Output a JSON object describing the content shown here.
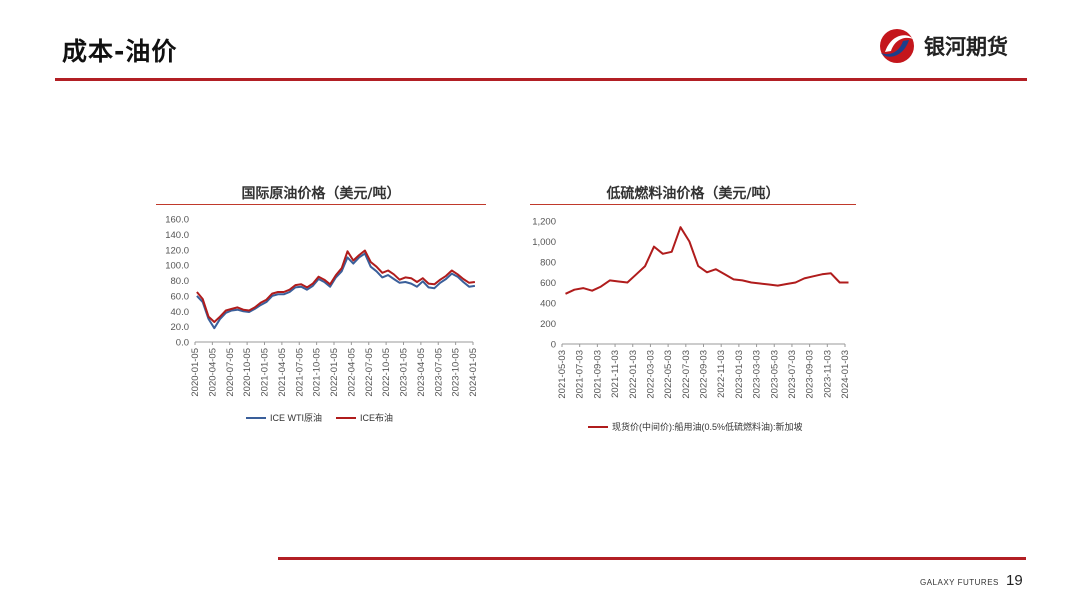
{
  "slide": {
    "title": "成本-油价"
  },
  "logo": {
    "text": "银河期货"
  },
  "footer": {
    "brand": "GALAXY FUTURES",
    "page_number": "19"
  },
  "colors": {
    "accent": "#b21f24",
    "wti": "#3a5f9a",
    "brent": "#b01c1c"
  },
  "chart_data": [
    {
      "type": "line",
      "title": "国际原油价格（美元/吨）",
      "ylim": [
        0,
        160
      ],
      "yticks": [
        "160.0",
        "140.0",
        "120.0",
        "100.0",
        "80.0",
        "60.0",
        "40.0",
        "20.0",
        "0.0"
      ],
      "xticks": [
        "2020-01-05",
        "2020-04-05",
        "2020-07-05",
        "2020-10-05",
        "2021-01-05",
        "2021-04-05",
        "2021-07-05",
        "2021-10-05",
        "2022-01-05",
        "2022-04-05",
        "2022-07-05",
        "2022-10-05",
        "2023-01-05",
        "2023-04-05",
        "2023-07-05",
        "2023-10-05",
        "2024-01-05"
      ],
      "legend_position": "bottom",
      "series": [
        {
          "name": "ICE WTI原油",
          "x": [
            "2020-01",
            "2020-02",
            "2020-03",
            "2020-04",
            "2020-05",
            "2020-06",
            "2020-07",
            "2020-08",
            "2020-09",
            "2020-10",
            "2020-11",
            "2020-12",
            "2021-01",
            "2021-02",
            "2021-03",
            "2021-04",
            "2021-05",
            "2021-06",
            "2021-07",
            "2021-08",
            "2021-09",
            "2021-10",
            "2021-11",
            "2021-12",
            "2022-01",
            "2022-02",
            "2022-03",
            "2022-04",
            "2022-05",
            "2022-06",
            "2022-07",
            "2022-08",
            "2022-09",
            "2022-10",
            "2022-11",
            "2022-12",
            "2023-01",
            "2023-02",
            "2023-03",
            "2023-04",
            "2023-05",
            "2023-06",
            "2023-07",
            "2023-08",
            "2023-09",
            "2023-10",
            "2023-11",
            "2023-12",
            "2024-01"
          ],
          "values": [
            60,
            52,
            30,
            18,
            30,
            38,
            41,
            42,
            40,
            39,
            43,
            48,
            52,
            60,
            62,
            62,
            65,
            71,
            72,
            68,
            73,
            82,
            78,
            72,
            84,
            92,
            110,
            102,
            110,
            115,
            98,
            92,
            84,
            87,
            82,
            77,
            78,
            76,
            72,
            79,
            71,
            70,
            77,
            82,
            89,
            85,
            78,
            72,
            73
          ]
        },
        {
          "name": "ICE布油",
          "x": [
            "2020-01",
            "2020-02",
            "2020-03",
            "2020-04",
            "2020-05",
            "2020-06",
            "2020-07",
            "2020-08",
            "2020-09",
            "2020-10",
            "2020-11",
            "2020-12",
            "2021-01",
            "2021-02",
            "2021-03",
            "2021-04",
            "2021-05",
            "2021-06",
            "2021-07",
            "2021-08",
            "2021-09",
            "2021-10",
            "2021-11",
            "2021-12",
            "2022-01",
            "2022-02",
            "2022-03",
            "2022-04",
            "2022-05",
            "2022-06",
            "2022-07",
            "2022-08",
            "2022-09",
            "2022-10",
            "2022-11",
            "2022-12",
            "2023-01",
            "2023-02",
            "2023-03",
            "2023-04",
            "2023-05",
            "2023-06",
            "2023-07",
            "2023-08",
            "2023-09",
            "2023-10",
            "2023-11",
            "2023-12",
            "2024-01"
          ],
          "values": [
            65,
            56,
            33,
            26,
            33,
            41,
            43,
            45,
            42,
            41,
            45,
            51,
            55,
            63,
            65,
            65,
            68,
            74,
            75,
            71,
            76,
            85,
            81,
            75,
            87,
            96,
            118,
            106,
            113,
            119,
            104,
            98,
            90,
            93,
            88,
            81,
            84,
            83,
            78,
            83,
            76,
            75,
            81,
            86,
            93,
            88,
            82,
            77,
            78
          ]
        }
      ]
    },
    {
      "type": "line",
      "title": "低硫燃料油价格（美元/吨）",
      "ylim": [
        0,
        1200
      ],
      "yticks": [
        "1,200",
        "1,000",
        "800",
        "600",
        "400",
        "200",
        "0"
      ],
      "xticks": [
        "2021-05-03",
        "2021-07-03",
        "2021-09-03",
        "2021-11-03",
        "2022-01-03",
        "2022-03-03",
        "2022-05-03",
        "2022-07-03",
        "2022-09-03",
        "2022-11-03",
        "2023-01-03",
        "2023-03-03",
        "2023-05-03",
        "2023-07-03",
        "2023-09-03",
        "2023-11-03",
        "2024-01-03"
      ],
      "legend_position": "bottom",
      "series": [
        {
          "name": "现货价(中间价):船用油(0.5%低硫燃料油):新加坡",
          "x": [
            "2021-05",
            "2021-06",
            "2021-07",
            "2021-08",
            "2021-09",
            "2021-10",
            "2021-11",
            "2021-12",
            "2022-01",
            "2022-02",
            "2022-03",
            "2022-04",
            "2022-05",
            "2022-06",
            "2022-07",
            "2022-08",
            "2022-09",
            "2022-10",
            "2022-11",
            "2022-12",
            "2023-01",
            "2023-02",
            "2023-03",
            "2023-04",
            "2023-05",
            "2023-06",
            "2023-07",
            "2023-08",
            "2023-09",
            "2023-10",
            "2023-11",
            "2023-12",
            "2024-01"
          ],
          "values": [
            490,
            530,
            545,
            520,
            560,
            620,
            610,
            600,
            680,
            760,
            950,
            880,
            900,
            1140,
            1000,
            760,
            700,
            730,
            680,
            630,
            620,
            600,
            590,
            580,
            570,
            585,
            600,
            640,
            660,
            680,
            690,
            600,
            600
          ]
        }
      ]
    }
  ]
}
